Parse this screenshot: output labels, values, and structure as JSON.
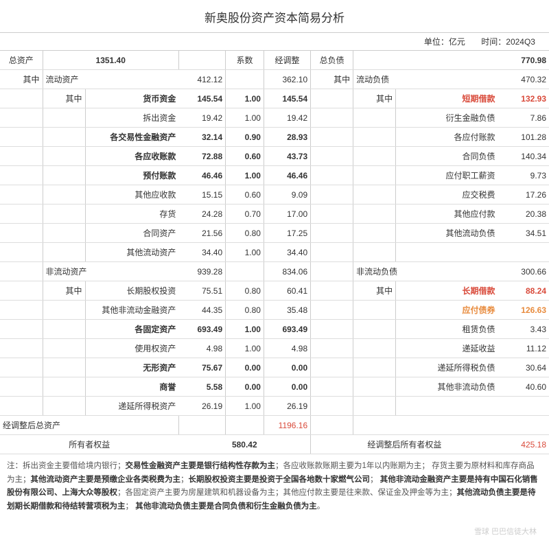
{
  "title": "新奥股份资产资本简易分析",
  "unit_label": "单位：亿元",
  "time_label": "时间：2024Q3",
  "hdr": {
    "total_assets": "总资产",
    "total_assets_val": "1351.40",
    "coef": "系数",
    "adjusted": "经调整",
    "total_liab": "总负债",
    "total_liab_val": "770.98",
    "of_which": "其中",
    "cur_assets": "流动资产",
    "cur_assets_val": "412.12",
    "cur_assets_adj": "362.10",
    "cur_liab": "流动负债",
    "cur_liab_val": "470.32"
  },
  "ca": [
    {
      "n": "货币资金",
      "v": "145.54",
      "c": "1.00",
      "a": "145.54",
      "b": true
    },
    {
      "n": "拆出资金",
      "v": "19.42",
      "c": "1.00",
      "a": "19.42",
      "b": false
    },
    {
      "n": "各交易性金融资产",
      "v": "32.14",
      "c": "0.90",
      "a": "28.93",
      "b": true
    },
    {
      "n": "各应收账款",
      "v": "72.88",
      "c": "0.60",
      "a": "43.73",
      "b": true
    },
    {
      "n": "预付账款",
      "v": "46.46",
      "c": "1.00",
      "a": "46.46",
      "b": true
    },
    {
      "n": "其他应收款",
      "v": "15.15",
      "c": "0.60",
      "a": "9.09",
      "b": false
    },
    {
      "n": "存货",
      "v": "24.28",
      "c": "0.70",
      "a": "17.00",
      "b": false
    },
    {
      "n": "合同资产",
      "v": "21.56",
      "c": "0.80",
      "a": "17.25",
      "b": false
    },
    {
      "n": "其他流动资产",
      "v": "34.40",
      "c": "1.00",
      "a": "34.40",
      "b": false
    }
  ],
  "cl": [
    {
      "n": "短期借款",
      "v": "132.93",
      "style": "redb"
    },
    {
      "n": "衍生金融负债",
      "v": "7.86"
    },
    {
      "n": "各应付账款",
      "v": "101.28"
    },
    {
      "n": "合同负债",
      "v": "140.34"
    },
    {
      "n": "应付职工薪资",
      "v": "9.73"
    },
    {
      "n": "应交税费",
      "v": "17.26"
    },
    {
      "n": "其他应付款",
      "v": "20.38"
    },
    {
      "n": "其他流动负债",
      "v": "34.51"
    }
  ],
  "nca_hdr": {
    "n": "非流动资产",
    "v": "939.28",
    "a": "834.06"
  },
  "ncl_hdr": {
    "n": "非流动负债",
    "v": "300.66"
  },
  "nca": [
    {
      "n": "长期股权投资",
      "v": "75.51",
      "c": "0.80",
      "a": "60.41",
      "b": false
    },
    {
      "n": "其他非流动金融资产",
      "v": "44.35",
      "c": "0.80",
      "a": "35.48",
      "b": false
    },
    {
      "n": "各固定资产",
      "v": "693.49",
      "c": "1.00",
      "a": "693.49",
      "b": true
    },
    {
      "n": "使用权资产",
      "v": "4.98",
      "c": "1.00",
      "a": "4.98",
      "b": false
    },
    {
      "n": "无形资产",
      "v": "75.67",
      "c": "0.00",
      "a": "0.00",
      "b": true
    },
    {
      "n": "商誉",
      "v": "5.58",
      "c": "0.00",
      "a": "0.00",
      "b": true
    },
    {
      "n": "递延所得税资产",
      "v": "26.19",
      "c": "1.00",
      "a": "26.19",
      "b": false
    }
  ],
  "ncl": [
    {
      "n": "长期借款",
      "v": "88.24",
      "style": "redb"
    },
    {
      "n": "应付债券",
      "v": "126.63",
      "style": "orange"
    },
    {
      "n": "租赁负债",
      "v": "3.43"
    },
    {
      "n": "递延收益",
      "v": "11.12"
    },
    {
      "n": "递延所得税负债",
      "v": "30.64"
    },
    {
      "n": "其他非流动负债",
      "v": "40.60"
    }
  ],
  "adjusted_total": {
    "label": "经调整后总资产",
    "val": "1196.16"
  },
  "equity": {
    "label": "所有者权益",
    "val": "580.42"
  },
  "adj_equity": {
    "label": "经调整后所有者权益",
    "val": "425.18"
  },
  "notes": {
    "prefix": "注：",
    "p1a": "拆出资金主要借给境内银行；",
    "p1b": "交易性金融资产主要是银行结构性存款为主",
    "p1c": "；各应收账款账期主要为1年以内账期为主；",
    "p2a": "存货主要为原材料和库存商品为主；",
    "p2b": "其他流动资产主要是预缴企业各类税费为主",
    "p2c": "；",
    "p2d": "长期股权投资主要是投资于全国各地数十家燃气公司",
    "p2e": "；",
    "p3a": "其他非流动金融资产主要是持有中国石化销售股份有限公司、上海大众等股权",
    "p3b": "；各固定资产主要为房屋建筑和机器设备为主；其他应付款主要是往来款、保证金及押金等为主；",
    "p4a": "其他流动负债主要是待划期长期借款和待结转营项税为主",
    "p4b": "；",
    "p5a": "其他非流动负债主要是合同负债和衍生金融负债为主",
    "p5b": "。"
  },
  "watermark": "雪球  巴巴信徒大林"
}
